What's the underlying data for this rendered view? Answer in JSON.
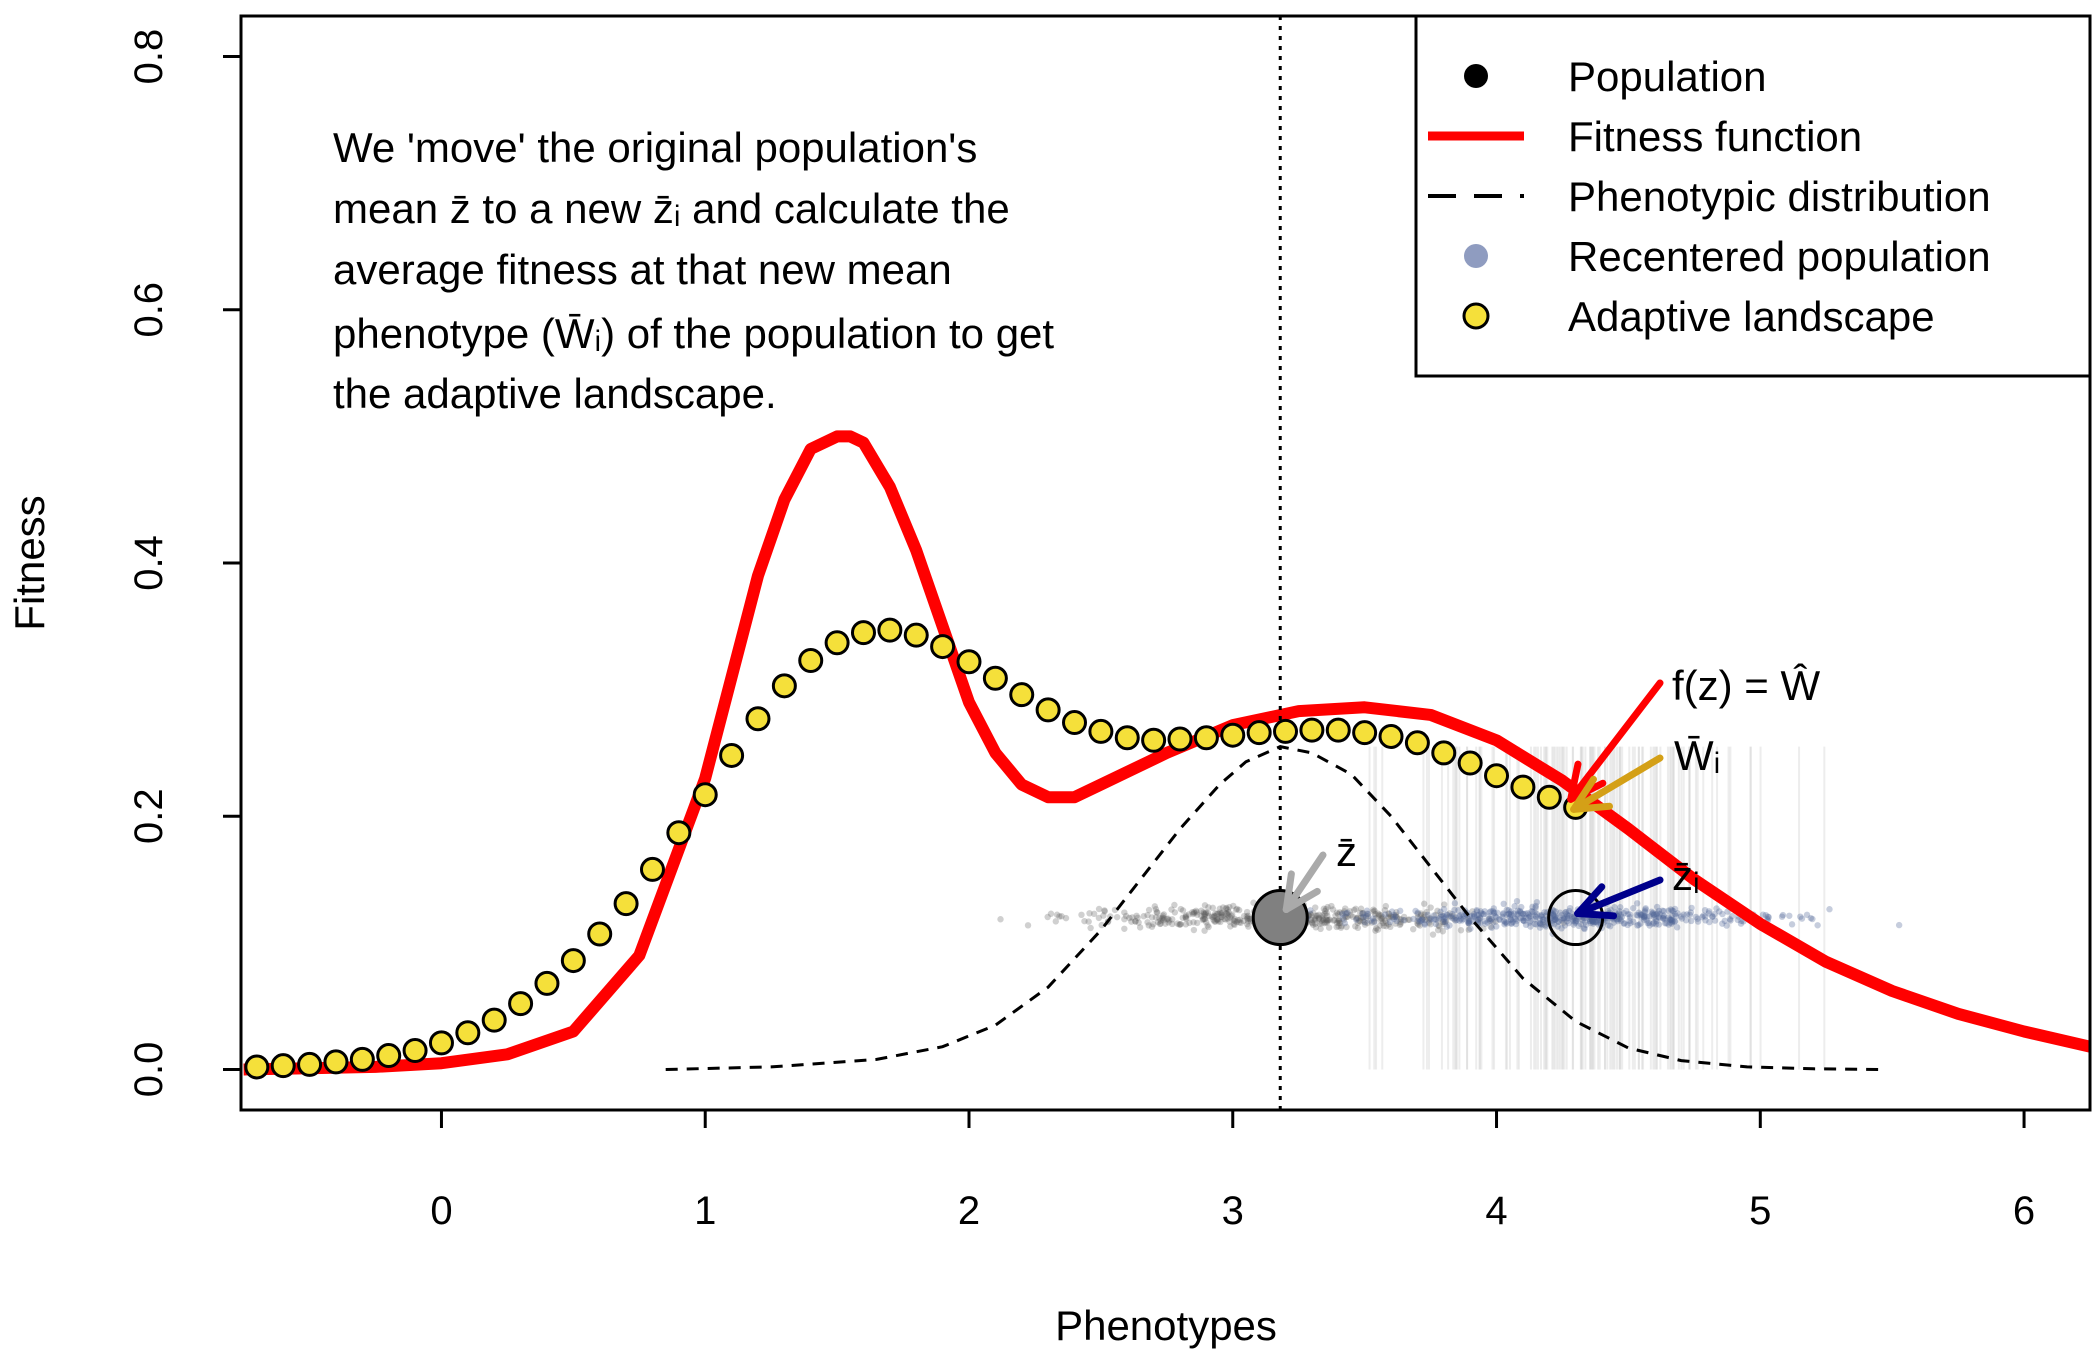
{
  "chart_data": {
    "type": "line",
    "xlabel": "Phenotypes",
    "ylabel": "Fitness",
    "xlim": [
      -0.76,
      6.25
    ],
    "ylim": [
      -0.032,
      0.832
    ],
    "xticks": [
      "0",
      "1",
      "2",
      "3",
      "4",
      "5",
      "6"
    ],
    "xtick_values": [
      0,
      1,
      2,
      3,
      4,
      5,
      6
    ],
    "yticks": [
      "0.0",
      "0.2",
      "0.4",
      "0.6",
      "0.8"
    ],
    "ytick_values": [
      0,
      0.2,
      0.4,
      0.6,
      0.8
    ],
    "grid": false,
    "legend_position": "top-right",
    "legend": [
      {
        "label": "Population",
        "marker": "dot-black"
      },
      {
        "label": "Fitness function",
        "marker": "line-red"
      },
      {
        "label": "Phenotypic distribution",
        "marker": "line-dashed"
      },
      {
        "label": "Recentered population",
        "marker": "dot-blue"
      },
      {
        "label": "Adaptive landscape",
        "marker": "dot-yellow"
      }
    ],
    "annotation_lines": [
      "We 'move' the original population's",
      "mean z̄ to a new z̄ᵢ and calculate the",
      "average fitness at that new mean",
      "phenotype (W̄ᵢ) of the population to get",
      "the adaptive landscape."
    ],
    "labels": {
      "fz": "f(z) = Ŵ",
      "wbar_i": "W̄ᵢ",
      "zbar": "z̄",
      "zbar_i": "z̄ᵢ"
    },
    "population_mean": 3.18,
    "recentered_mean": 4.3,
    "population_y": 0.12,
    "mean_line_x": 3.18,
    "series": [
      {
        "name": "Fitness function",
        "color": "#ff0000",
        "x": [
          -0.75,
          -0.5,
          -0.25,
          0.0,
          0.25,
          0.5,
          0.75,
          1.0,
          1.1,
          1.2,
          1.3,
          1.4,
          1.5,
          1.55,
          1.6,
          1.7,
          1.8,
          1.9,
          2.0,
          2.1,
          2.2,
          2.3,
          2.4,
          2.5,
          2.75,
          3.0,
          3.25,
          3.5,
          3.75,
          4.0,
          4.25,
          4.5,
          4.75,
          5.0,
          5.25,
          5.5,
          5.75,
          6.0,
          6.25
        ],
        "y": [
          0.0,
          0.001,
          0.002,
          0.005,
          0.012,
          0.03,
          0.09,
          0.23,
          0.31,
          0.39,
          0.45,
          0.49,
          0.5,
          0.5,
          0.495,
          0.46,
          0.41,
          0.35,
          0.29,
          0.25,
          0.225,
          0.215,
          0.215,
          0.225,
          0.25,
          0.272,
          0.283,
          0.286,
          0.28,
          0.26,
          0.228,
          0.19,
          0.15,
          0.115,
          0.085,
          0.062,
          0.044,
          0.03,
          0.018
        ]
      },
      {
        "name": "Phenotypic distribution",
        "color": "#000000",
        "x": [
          0.85,
          1.25,
          1.65,
          1.9,
          2.1,
          2.3,
          2.5,
          2.65,
          2.8,
          2.95,
          3.05,
          3.18,
          3.3,
          3.45,
          3.6,
          3.75,
          3.9,
          4.1,
          4.3,
          4.5,
          4.7,
          4.95,
          5.2,
          5.45
        ],
        "y": [
          0.0,
          0.002,
          0.008,
          0.018,
          0.035,
          0.065,
          0.11,
          0.15,
          0.19,
          0.225,
          0.243,
          0.255,
          0.25,
          0.233,
          0.2,
          0.16,
          0.12,
          0.072,
          0.038,
          0.017,
          0.007,
          0.002,
          0.0005,
          0.0
        ]
      },
      {
        "name": "Adaptive landscape",
        "color": "#f5e03a",
        "x": [
          -0.7,
          -0.6,
          -0.5,
          -0.4,
          -0.3,
          -0.2,
          -0.1,
          0.0,
          0.1,
          0.2,
          0.3,
          0.4,
          0.5,
          0.6,
          0.7,
          0.8,
          0.9,
          1.0,
          1.1,
          1.2,
          1.3,
          1.4,
          1.5,
          1.6,
          1.7,
          1.8,
          1.9,
          2.0,
          2.1,
          2.2,
          2.3,
          2.4,
          2.5,
          2.6,
          2.7,
          2.8,
          2.9,
          3.0,
          3.1,
          3.2,
          3.3,
          3.4,
          3.5,
          3.6,
          3.7,
          3.8,
          3.9,
          4.0,
          4.1,
          4.2,
          4.3
        ],
        "y": [
          0.002,
          0.003,
          0.004,
          0.006,
          0.008,
          0.011,
          0.015,
          0.021,
          0.029,
          0.039,
          0.052,
          0.068,
          0.086,
          0.107,
          0.131,
          0.158,
          0.187,
          0.217,
          0.248,
          0.277,
          0.303,
          0.323,
          0.337,
          0.345,
          0.347,
          0.343,
          0.334,
          0.322,
          0.309,
          0.296,
          0.284,
          0.274,
          0.267,
          0.262,
          0.26,
          0.261,
          0.262,
          0.264,
          0.266,
          0.267,
          0.268,
          0.268,
          0.266,
          0.263,
          0.258,
          0.25,
          0.242,
          0.232,
          0.223,
          0.215,
          0.207
        ]
      }
    ]
  }
}
